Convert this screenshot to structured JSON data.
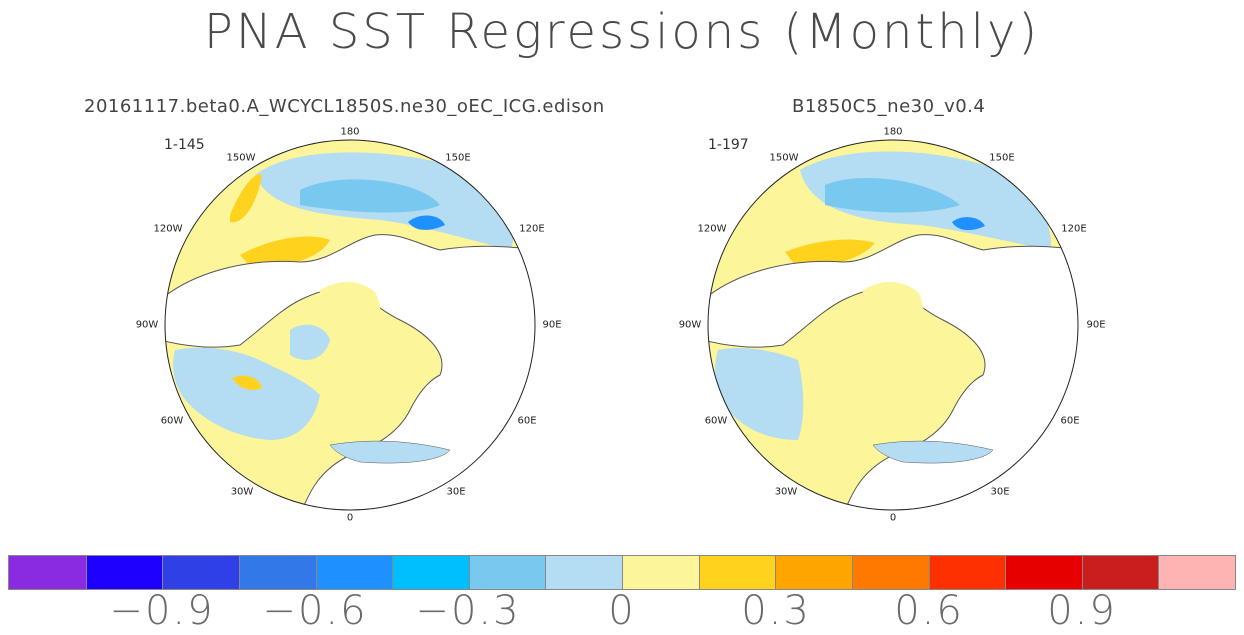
{
  "title": "PNA SST Regressions (Monthly)",
  "panels": [
    {
      "title": "20161117.beta0.A_WCYCL1850S.ne30_oEC_ICG.edison",
      "range": "1-145"
    },
    {
      "title": "B1850C5_ne30_v0.4",
      "range": "1-197"
    }
  ],
  "lon_labels": [
    "180",
    "150E",
    "120E",
    "90E",
    "60E",
    "30E",
    "0",
    "30W",
    "60W",
    "90W",
    "120W",
    "150W"
  ],
  "colorbar": {
    "colors": [
      "#8a2be2",
      "#1e00ff",
      "#2e40e6",
      "#3378e8",
      "#1e90ff",
      "#00bfff",
      "#78c8f0",
      "#b4dcf2",
      "#fdf59a",
      "#ffd21e",
      "#ffa500",
      "#ff7800",
      "#ff3000",
      "#e60000",
      "#c81e1e",
      "#ffb4b4"
    ],
    "labels": [
      "−0.9",
      "−0.6",
      "−0.3",
      "0",
      "0.3",
      "0.6",
      "0.9"
    ]
  }
}
